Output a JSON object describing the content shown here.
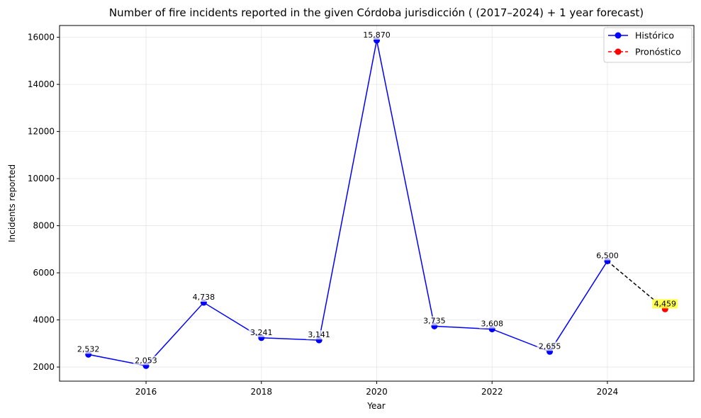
{
  "chart_data": {
    "type": "line",
    "title": "Number of fire incidents reported in the given Córdoba jurisdicción  ( (2017–2024)  + 1 year forecast)",
    "xlabel": "Year",
    "ylabel": "Incidents reported",
    "xlim": [
      2014.5,
      2025.5
    ],
    "ylim": [
      1400,
      16500
    ],
    "xticks": [
      2016,
      2018,
      2020,
      2022,
      2024
    ],
    "yticks": [
      2000,
      4000,
      6000,
      8000,
      10000,
      12000,
      14000,
      16000
    ],
    "grid": true,
    "legend_position": "top-right",
    "series": [
      {
        "name": "Histórico",
        "color": "#0000ff",
        "style": "solid",
        "x": [
          2015,
          2016,
          2017,
          2018,
          2019,
          2020,
          2021,
          2022,
          2023,
          2024
        ],
        "y": [
          2532,
          2053,
          4738,
          3241,
          3141,
          15870,
          3735,
          3608,
          2655,
          6500
        ],
        "labels": [
          "2,532",
          "2,053",
          "4,738",
          "3,241",
          "3,141",
          "15,870",
          "3,735",
          "3,608",
          "2,655",
          "6,500"
        ]
      },
      {
        "name": "Pronóstico",
        "color": "#ff0000",
        "style": "dashed",
        "x": [
          2025
        ],
        "y": [
          4459
        ],
        "labels": [
          "4,459"
        ],
        "highlight": "#ffff33"
      }
    ],
    "connector_color": "#000000"
  }
}
